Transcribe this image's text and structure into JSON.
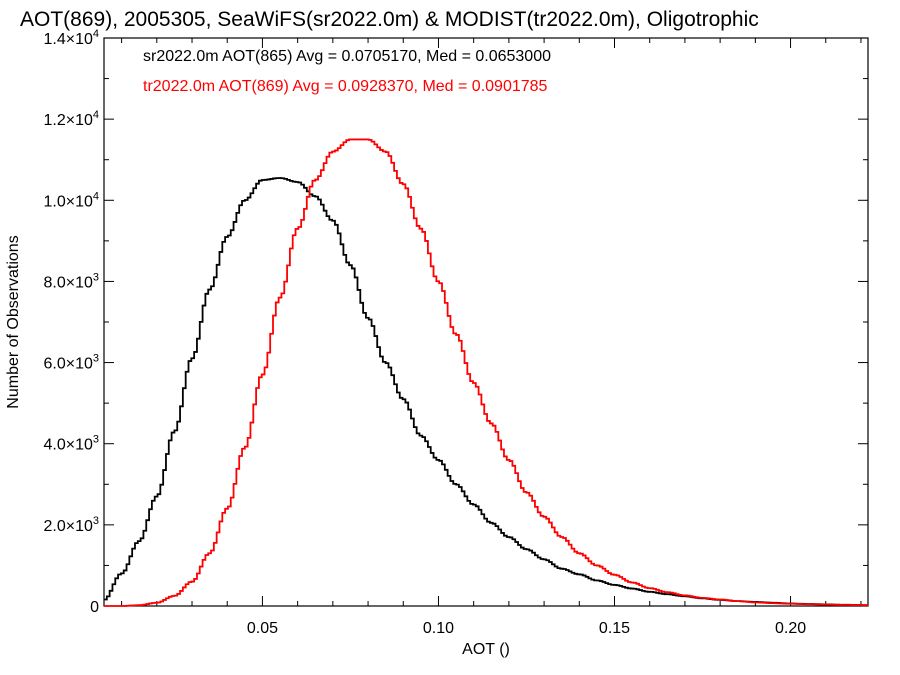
{
  "chart_data": {
    "type": "line",
    "title": "AOT(869), 2005305, SeaWiFS(sr2022.0m) & MODIST(tr2022.0m), Oligotrophic",
    "xlabel": "AOT ()",
    "ylabel": "Number of Observations",
    "xlim": [
      0.005,
      0.222
    ],
    "ylim": [
      0,
      14000
    ],
    "grid": false,
    "legend_placement": "top-left",
    "x_ticks": [
      {
        "value": 0.05,
        "label": "0.05"
      },
      {
        "value": 0.1,
        "label": "0.10"
      },
      {
        "value": 0.15,
        "label": "0.15"
      },
      {
        "value": 0.2,
        "label": "0.20"
      }
    ],
    "y_ticks": [
      {
        "value": 0,
        "label": "0"
      },
      {
        "value": 2000,
        "mant": "2.0×10",
        "exp": "3"
      },
      {
        "value": 4000,
        "mant": "4.0×10",
        "exp": "3"
      },
      {
        "value": 6000,
        "mant": "6.0×10",
        "exp": "3"
      },
      {
        "value": 8000,
        "mant": "8.0×10",
        "exp": "3"
      },
      {
        "value": 10000,
        "mant": "1.0×10",
        "exp": "4"
      },
      {
        "value": 12000,
        "mant": "1.2×10",
        "exp": "4"
      },
      {
        "value": 14000,
        "mant": "1.4×10",
        "exp": "4"
      }
    ],
    "series": [
      {
        "label": "sr2022.0m AOT(865) Avg = 0.0705170, Med = 0.0653000",
        "color": "#000000",
        "x": [
          0.005,
          0.01,
          0.015,
          0.02,
          0.025,
          0.03,
          0.035,
          0.04,
          0.045,
          0.05,
          0.055,
          0.06,
          0.065,
          0.07,
          0.075,
          0.08,
          0.085,
          0.09,
          0.095,
          0.1,
          0.105,
          0.11,
          0.115,
          0.12,
          0.125,
          0.13,
          0.135,
          0.14,
          0.145,
          0.15,
          0.155,
          0.16,
          0.165,
          0.17,
          0.175,
          0.18,
          0.185,
          0.19,
          0.195,
          0.2,
          0.205,
          0.21,
          0.215,
          0.222
        ],
        "y": [
          150,
          800,
          1600,
          2700,
          4300,
          6100,
          7800,
          9100,
          10000,
          10500,
          10550,
          10450,
          10100,
          9500,
          8400,
          7100,
          6000,
          5100,
          4200,
          3600,
          3000,
          2500,
          2050,
          1700,
          1400,
          1150,
          920,
          780,
          630,
          520,
          430,
          350,
          290,
          240,
          190,
          150,
          120,
          100,
          80,
          60,
          50,
          40,
          30,
          20
        ]
      },
      {
        "label": "tr2022.0m AOT(869) Avg = 0.0928370, Med = 0.0901785",
        "color": "#ff0000",
        "x": [
          0.005,
          0.01,
          0.015,
          0.02,
          0.025,
          0.03,
          0.035,
          0.04,
          0.045,
          0.05,
          0.055,
          0.06,
          0.065,
          0.07,
          0.075,
          0.08,
          0.085,
          0.09,
          0.095,
          0.1,
          0.105,
          0.11,
          0.115,
          0.12,
          0.125,
          0.13,
          0.135,
          0.14,
          0.145,
          0.15,
          0.155,
          0.16,
          0.165,
          0.17,
          0.175,
          0.18,
          0.185,
          0.19,
          0.195,
          0.2,
          0.205,
          0.21,
          0.215,
          0.222
        ],
        "y": [
          0,
          0,
          20,
          80,
          250,
          600,
          1300,
          2400,
          3900,
          5700,
          7600,
          9300,
          10500,
          11200,
          11500,
          11500,
          11200,
          10400,
          9300,
          8000,
          6700,
          5500,
          4500,
          3600,
          2800,
          2200,
          1700,
          1300,
          1000,
          770,
          580,
          440,
          340,
          260,
          200,
          160,
          120,
          90,
          70,
          55,
          45,
          35,
          25,
          20
        ]
      }
    ]
  }
}
